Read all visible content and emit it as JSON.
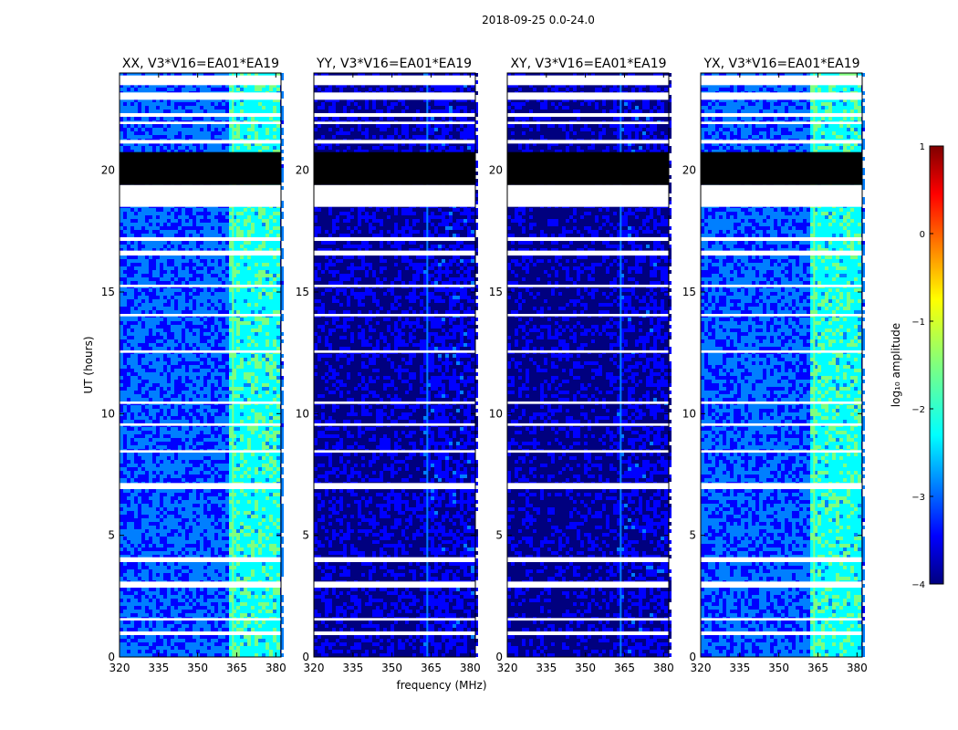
{
  "suptitle": "2018-09-25 0.0-24.0",
  "chart_data": [
    {
      "type": "heatmap",
      "title": "XX, V3*V16=EA01*EA19",
      "xlabel": "",
      "ylabel": "UT (hours)",
      "xlim": [
        320,
        382
      ],
      "ylim": [
        0,
        24
      ],
      "xticks": [
        "320",
        "335",
        "350",
        "365",
        "380"
      ],
      "yticks": [
        "0",
        "5",
        "10",
        "15",
        "20"
      ],
      "rfi_band_mhz": [
        361,
        381
      ],
      "mean_log10_amplitude": -2.9
    },
    {
      "type": "heatmap",
      "title": "YY, V3*V16=EA01*EA19",
      "xlabel": "frequency (MHz)",
      "ylabel": "",
      "xlim": [
        320,
        382
      ],
      "ylim": [
        0,
        24
      ],
      "xticks": [
        "320",
        "335",
        "350",
        "365",
        "380"
      ],
      "yticks": [
        "0",
        "5",
        "10",
        "15",
        "20"
      ],
      "rfi_band_mhz": [
        361,
        381
      ],
      "mean_log10_amplitude": -3.7
    },
    {
      "type": "heatmap",
      "title": "XY, V3*V16=EA01*EA19",
      "xlabel": "",
      "ylabel": "",
      "xlim": [
        320,
        382
      ],
      "ylim": [
        0,
        24
      ],
      "xticks": [
        "320",
        "335",
        "350",
        "365",
        "380"
      ],
      "yticks": [
        "0",
        "5",
        "10",
        "15",
        "20"
      ],
      "rfi_band_mhz": [
        361,
        381
      ],
      "mean_log10_amplitude": -3.75
    },
    {
      "type": "heatmap",
      "title": "YX, V3*V16=EA01*EA19",
      "xlabel": "",
      "ylabel": "",
      "xlim": [
        320,
        382
      ],
      "ylim": [
        0,
        24
      ],
      "xticks": [
        "320",
        "335",
        "350",
        "365",
        "380"
      ],
      "yticks": [
        "0",
        "5",
        "10",
        "15",
        "20"
      ],
      "rfi_band_mhz": [
        361,
        381
      ],
      "mean_log10_amplitude": -2.9
    }
  ],
  "flagged_hours": [
    [
      0.9,
      1.05
    ],
    [
      1.5,
      1.6
    ],
    [
      2.85,
      3.1
    ],
    [
      3.9,
      4.1
    ],
    [
      6.9,
      7.15
    ],
    [
      8.4,
      8.5
    ],
    [
      9.5,
      9.6
    ],
    [
      10.4,
      10.5
    ],
    [
      12.5,
      12.6
    ],
    [
      14.0,
      14.1
    ],
    [
      15.2,
      15.3
    ],
    [
      16.5,
      16.7
    ],
    [
      17.1,
      17.25
    ],
    [
      18.5,
      19.4
    ],
    [
      21.1,
      21.25
    ],
    [
      21.9,
      22.0
    ],
    [
      22.2,
      22.35
    ],
    [
      22.9,
      23.2
    ],
    [
      23.5,
      23.9
    ]
  ],
  "dead_hours": [
    19.4,
    20.75
  ],
  "colorbar": {
    "label": "log₁₀ amplitude",
    "min": -4,
    "max": 1,
    "ticks": [
      "1",
      "0",
      "−1",
      "−2",
      "−3",
      "−4"
    ]
  },
  "colors": {
    "jet": [
      "#00007f",
      "#0000ff",
      "#007fff",
      "#00ffff",
      "#7fff7f",
      "#ffff00",
      "#ff7f00",
      "#ff0000",
      "#7f0000"
    ],
    "flag": "#ffffff",
    "dead": "#000000"
  }
}
